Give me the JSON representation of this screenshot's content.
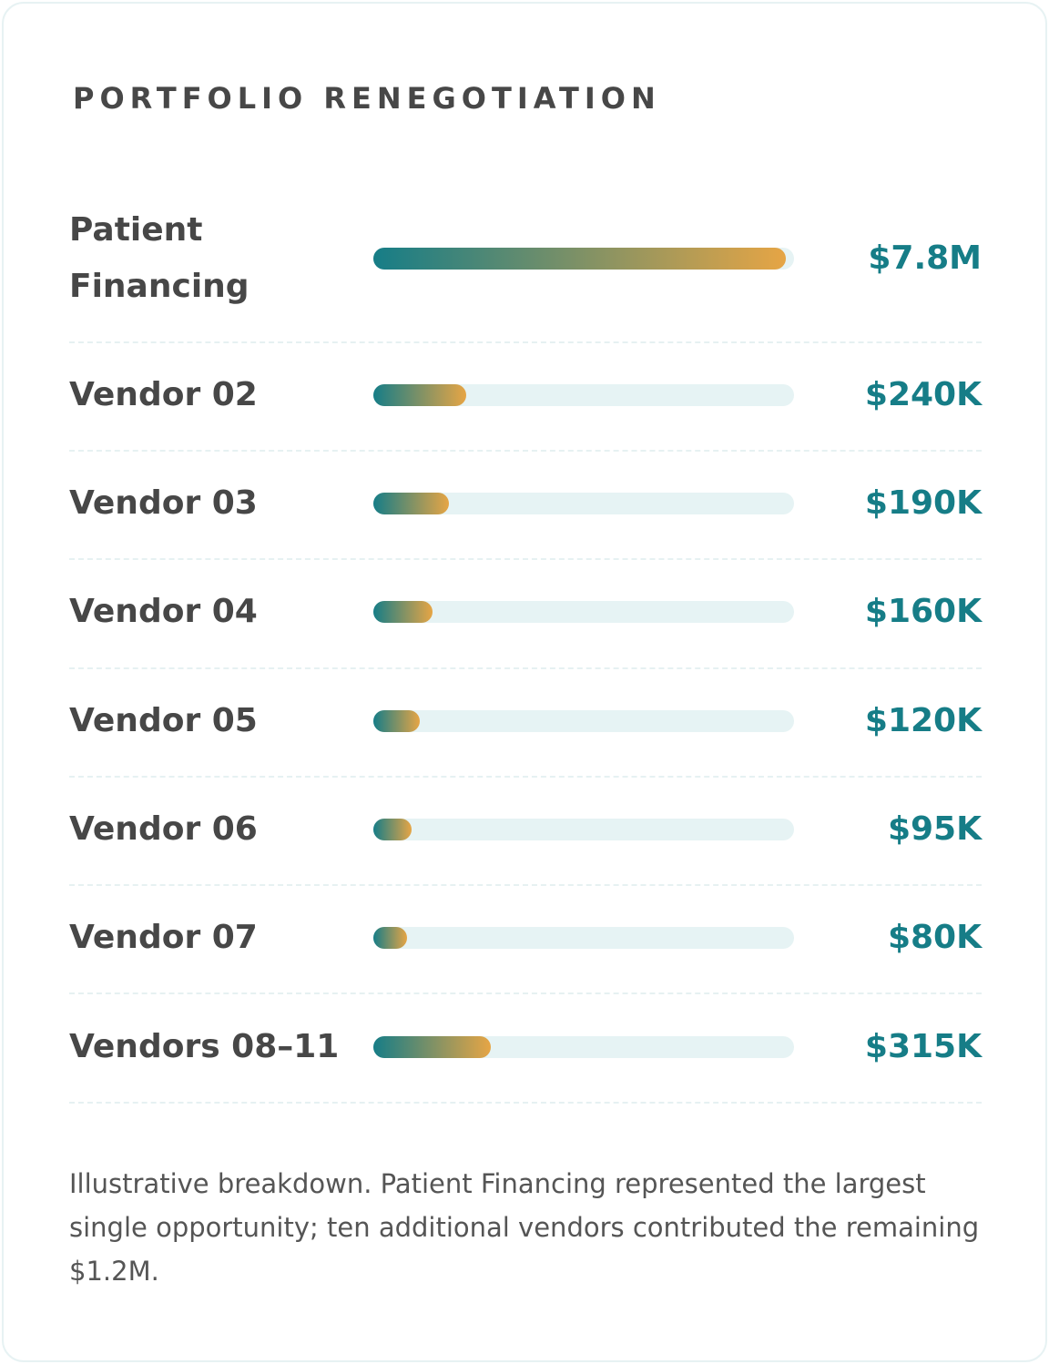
{
  "card": {
    "title": "PORTFOLIO RENEGOTIATION",
    "note": "Illustrative breakdown. Patient Financing represented the largest single opportunity; ten additional vendors contributed the remaining $1.2M."
  },
  "colors": {
    "accent": "#167d87",
    "gradient_start": "#167d87",
    "gradient_end": "#e6a545",
    "track": "#e6f3f4",
    "label_text": "#474747",
    "divider": "#e6f1f2"
  },
  "chart_data": {
    "type": "bar",
    "orientation": "horizontal",
    "title": "PORTFOLIO RENEGOTIATION",
    "categories": [
      "Patient Financing",
      "Vendor 02",
      "Vendor 03",
      "Vendor 04",
      "Vendor 05",
      "Vendor 06",
      "Vendor 07",
      "Vendors 08–11"
    ],
    "values": [
      7800000,
      240000,
      190000,
      160000,
      120000,
      95000,
      80000,
      315000
    ],
    "value_labels": [
      "$7.8M",
      "$240K",
      "$190K",
      "$160K",
      "$120K",
      "$95K",
      "$80K",
      "$315K"
    ],
    "bar_fill_fraction": [
      0.98,
      0.22,
      0.18,
      0.14,
      0.11,
      0.09,
      0.08,
      0.28
    ],
    "xlabel": "",
    "ylabel": "",
    "grid": false,
    "legend": "none"
  }
}
